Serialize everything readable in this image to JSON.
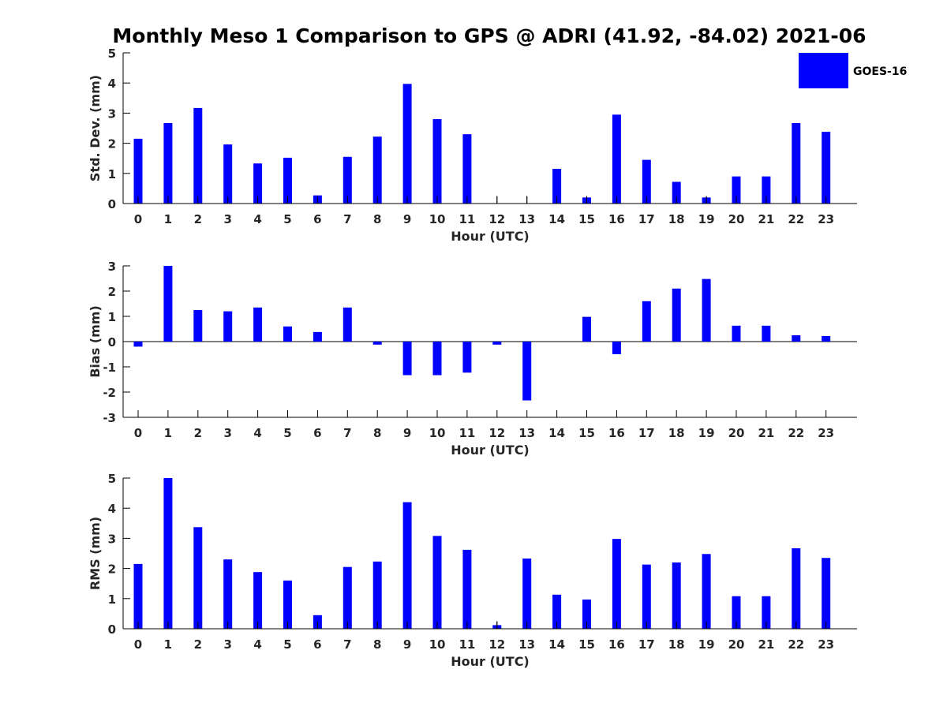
{
  "title": "Monthly Meso 1 Comparison to GPS @ ADRI (41.92, -84.02) 2021-06",
  "legend": {
    "label": "GOES-16",
    "color": "#0000ff"
  },
  "chart_data": [
    {
      "type": "bar",
      "xlabel": "Hour (UTC)",
      "ylabel": "Std. Dev. (mm)",
      "ylim": [
        0,
        5
      ],
      "yticks": [
        "0",
        "1",
        "2",
        "3",
        "4",
        "5"
      ],
      "categories": [
        "0",
        "1",
        "2",
        "3",
        "4",
        "5",
        "6",
        "7",
        "8",
        "9",
        "10",
        "11",
        "12",
        "13",
        "14",
        "15",
        "16",
        "17",
        "18",
        "19",
        "20",
        "21",
        "22",
        "23"
      ],
      "series": [
        {
          "name": "GOES-16",
          "color": "#0000ff",
          "values": [
            2.15,
            2.67,
            3.17,
            1.96,
            1.33,
            1.52,
            0.27,
            1.55,
            2.22,
            3.97,
            2.8,
            2.3,
            0,
            0,
            1.15,
            0.2,
            2.95,
            1.45,
            0.72,
            0.2,
            0.9,
            0.9,
            2.67,
            2.38
          ]
        }
      ],
      "error_ticks": [
        {
          "category": "12",
          "y": 0.25
        },
        {
          "category": "13",
          "y": 0.25
        },
        {
          "category": "15",
          "y": 0.25
        },
        {
          "category": "19",
          "y": 0.25
        }
      ]
    },
    {
      "type": "bar",
      "xlabel": "Hour (UTC)",
      "ylabel": "Bias (mm)",
      "ylim": [
        -3,
        3
      ],
      "yticks": [
        "-3",
        "-2",
        "-1",
        "0",
        "1",
        "2",
        "3"
      ],
      "categories": [
        "0",
        "1",
        "2",
        "3",
        "4",
        "5",
        "6",
        "7",
        "8",
        "9",
        "10",
        "11",
        "12",
        "13",
        "14",
        "15",
        "16",
        "17",
        "18",
        "19",
        "20",
        "21",
        "22",
        "23"
      ],
      "series": [
        {
          "name": "GOES-16",
          "color": "#0000ff",
          "values": [
            -0.2,
            3.0,
            1.25,
            1.2,
            1.35,
            0.6,
            0.38,
            1.35,
            -0.12,
            -1.33,
            -1.33,
            -1.23,
            -0.12,
            -2.33,
            0,
            0.98,
            -0.5,
            1.6,
            2.1,
            2.48,
            0.63,
            0.63,
            0.25,
            0.22
          ]
        }
      ],
      "error_ticks": []
    },
    {
      "type": "bar",
      "xlabel": "Hour (UTC)",
      "ylabel": "RMS (mm)",
      "ylim": [
        0,
        5
      ],
      "yticks": [
        "0",
        "1",
        "2",
        "3",
        "4",
        "5"
      ],
      "categories": [
        "0",
        "1",
        "2",
        "3",
        "4",
        "5",
        "6",
        "7",
        "8",
        "9",
        "10",
        "11",
        "12",
        "13",
        "14",
        "15",
        "16",
        "17",
        "18",
        "19",
        "20",
        "21",
        "22",
        "23"
      ],
      "series": [
        {
          "name": "GOES-16",
          "color": "#0000ff",
          "values": [
            2.15,
            5.0,
            3.37,
            2.3,
            1.88,
            1.6,
            0.45,
            2.05,
            2.23,
            4.2,
            3.08,
            2.62,
            0.12,
            2.33,
            1.13,
            0.97,
            2.98,
            2.13,
            2.2,
            2.48,
            1.08,
            1.08,
            2.67,
            2.35
          ]
        }
      ],
      "error_ticks": [
        {
          "category": "12",
          "y": 0.25
        }
      ]
    }
  ]
}
